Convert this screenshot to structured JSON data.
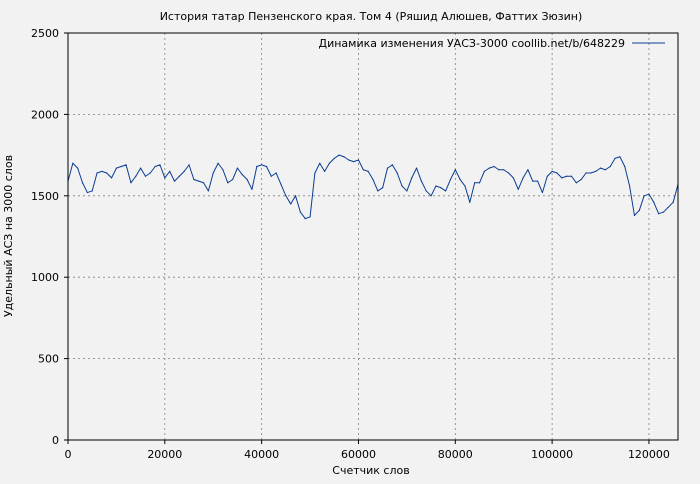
{
  "chart_data": {
    "type": "line",
    "title": "История татар Пензенского края. Том 4 (Ряшид Алюшев, Фаттих Зюзин)",
    "xlabel": "Счетчик слов",
    "ylabel": "Удельный АСЗ на 3000 слов",
    "xlim": [
      0,
      126000
    ],
    "ylim": [
      0,
      2500
    ],
    "x_ticks": [
      0,
      20000,
      40000,
      60000,
      80000,
      100000,
      120000
    ],
    "y_ticks": [
      0,
      500,
      1000,
      1500,
      2000,
      2500
    ],
    "grid": true,
    "legend_position": "top-right",
    "series": [
      {
        "name": "Динамика изменения УАСЗ-3000 coollib.net/b/648229",
        "color": "#0b3d91",
        "x": [
          0,
          1000,
          2000,
          3000,
          4000,
          5000,
          6000,
          7000,
          8000,
          9000,
          10000,
          11000,
          12000,
          13000,
          14000,
          15000,
          16000,
          17000,
          18000,
          19000,
          20000,
          21000,
          22000,
          23000,
          24000,
          25000,
          26000,
          27000,
          28000,
          29000,
          30000,
          31000,
          32000,
          33000,
          34000,
          35000,
          36000,
          37000,
          38000,
          39000,
          40000,
          41000,
          42000,
          43000,
          44000,
          45000,
          46000,
          47000,
          48000,
          49000,
          50000,
          51000,
          52000,
          53000,
          54000,
          55000,
          56000,
          57000,
          58000,
          59000,
          60000,
          61000,
          62000,
          63000,
          64000,
          65000,
          66000,
          67000,
          68000,
          69000,
          70000,
          71000,
          72000,
          73000,
          74000,
          75000,
          76000,
          77000,
          78000,
          79000,
          80000,
          81000,
          82000,
          83000,
          84000,
          85000,
          86000,
          87000,
          88000,
          89000,
          90000,
          91000,
          92000,
          93000,
          94000,
          95000,
          96000,
          97000,
          98000,
          99000,
          100000,
          101000,
          102000,
          103000,
          104000,
          105000,
          106000,
          107000,
          108000,
          109000,
          110000,
          111000,
          112000,
          113000,
          114000,
          115000,
          116000,
          117000,
          118000,
          119000,
          120000,
          121000,
          122000,
          123000,
          124000,
          125000,
          126000
        ],
        "y": [
          1590,
          1700,
          1670,
          1580,
          1520,
          1530,
          1640,
          1650,
          1640,
          1610,
          1670,
          1680,
          1690,
          1580,
          1620,
          1670,
          1620,
          1640,
          1680,
          1690,
          1610,
          1650,
          1590,
          1620,
          1650,
          1690,
          1600,
          1590,
          1580,
          1530,
          1640,
          1700,
          1660,
          1580,
          1600,
          1670,
          1630,
          1600,
          1540,
          1680,
          1690,
          1680,
          1620,
          1640,
          1570,
          1500,
          1450,
          1500,
          1400,
          1360,
          1370,
          1640,
          1700,
          1650,
          1700,
          1730,
          1750,
          1740,
          1720,
          1710,
          1720,
          1660,
          1650,
          1600,
          1530,
          1550,
          1670,
          1690,
          1640,
          1560,
          1530,
          1610,
          1670,
          1590,
          1530,
          1500,
          1560,
          1550,
          1530,
          1600,
          1660,
          1600,
          1560,
          1460,
          1580,
          1580,
          1650,
          1670,
          1680,
          1660,
          1660,
          1640,
          1610,
          1540,
          1610,
          1660,
          1590,
          1590,
          1520,
          1620,
          1650,
          1640,
          1610,
          1620,
          1620,
          1580,
          1600,
          1640,
          1640,
          1650,
          1670,
          1660,
          1680,
          1730,
          1740,
          1680,
          1560,
          1380,
          1410,
          1500,
          1510,
          1460,
          1390,
          1400,
          1430,
          1460,
          1570
        ]
      }
    ]
  }
}
